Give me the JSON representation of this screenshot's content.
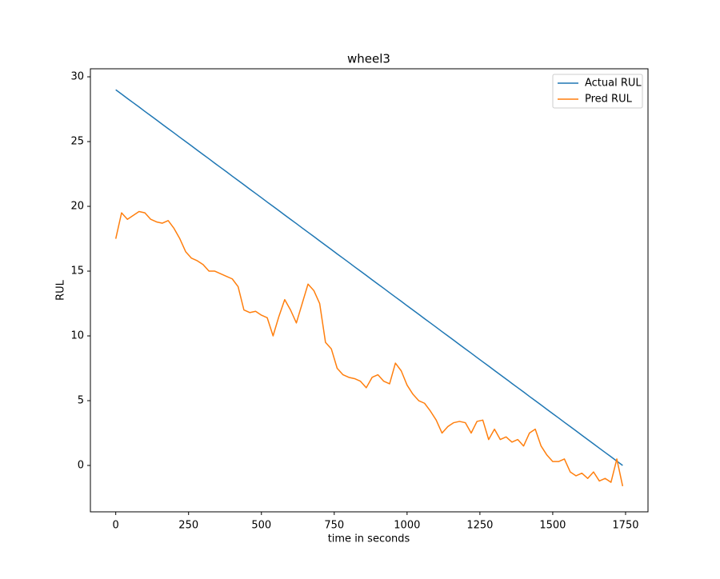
{
  "chart_data": {
    "type": "line",
    "title": "wheel3",
    "xlabel": "time in seconds",
    "ylabel": "RUL",
    "x": [
      0,
      20,
      40,
      60,
      80,
      100,
      120,
      140,
      160,
      180,
      200,
      220,
      240,
      260,
      280,
      300,
      320,
      340,
      360,
      380,
      400,
      420,
      440,
      460,
      480,
      500,
      520,
      540,
      560,
      580,
      600,
      620,
      640,
      660,
      680,
      700,
      720,
      740,
      760,
      780,
      800,
      820,
      840,
      860,
      880,
      900,
      920,
      940,
      960,
      980,
      1000,
      1020,
      1040,
      1060,
      1080,
      1100,
      1120,
      1140,
      1160,
      1180,
      1200,
      1220,
      1240,
      1260,
      1280,
      1300,
      1320,
      1340,
      1360,
      1380,
      1400,
      1420,
      1440,
      1460,
      1480,
      1500,
      1520,
      1540,
      1560,
      1580,
      1600,
      1620,
      1640,
      1660,
      1680,
      1700,
      1720,
      1740
    ],
    "series": [
      {
        "name": "Actual RUL",
        "color": "#1f77b4",
        "values": [
          29,
          28.67,
          28.33,
          28,
          27.67,
          27.33,
          27,
          26.67,
          26.33,
          26,
          25.67,
          25.33,
          25,
          24.67,
          24.33,
          24,
          23.67,
          23.33,
          23,
          22.67,
          22.33,
          22,
          21.67,
          21.33,
          21,
          20.67,
          20.33,
          20,
          19.67,
          19.33,
          19,
          18.67,
          18.33,
          18,
          17.67,
          17.33,
          17,
          16.67,
          16.33,
          16,
          15.67,
          15.33,
          15,
          14.67,
          14.33,
          14,
          13.67,
          13.33,
          13,
          12.67,
          12.33,
          12,
          11.67,
          11.33,
          11,
          10.67,
          10.33,
          10,
          9.67,
          9.33,
          9,
          8.67,
          8.33,
          8,
          7.67,
          7.33,
          7,
          6.67,
          6.33,
          6,
          5.67,
          5.33,
          5,
          4.67,
          4.33,
          4,
          3.67,
          3.33,
          3,
          2.67,
          2.33,
          2,
          1.67,
          1.33,
          1,
          0.67,
          0.33,
          0
        ]
      },
      {
        "name": "Pred RUL",
        "color": "#ff7f0e",
        "values": [
          17.5,
          19.5,
          19,
          19.3,
          19.6,
          19.5,
          19,
          18.8,
          18.7,
          18.9,
          18.3,
          17.5,
          16.5,
          16,
          15.8,
          15.5,
          15,
          15,
          14.8,
          14.6,
          14.4,
          13.8,
          12,
          11.8,
          11.9,
          11.6,
          11.4,
          10,
          11.5,
          12.8,
          12,
          11,
          12.5,
          14,
          13.5,
          12.5,
          9.5,
          9,
          7.5,
          7,
          6.8,
          6.7,
          6.5,
          6,
          6.8,
          7,
          6.5,
          6.3,
          7.9,
          7.3,
          6.2,
          5.5,
          5,
          4.8,
          4.2,
          3.5,
          2.5,
          3,
          3.3,
          3.4,
          3.3,
          2.5,
          3.4,
          3.5,
          2,
          2.8,
          2,
          2.2,
          1.8,
          2,
          1.5,
          2.5,
          2.8,
          1.5,
          0.8,
          0.3,
          0.3,
          0.5,
          -0.5,
          -0.8,
          -0.6,
          -1,
          -0.5,
          -1.2,
          -1,
          -1.3,
          0.5,
          -1.6
        ]
      }
    ],
    "xlim": [
      -87,
      1827
    ],
    "ylim": [
      -3.58,
      30.62
    ],
    "xticks": [
      0,
      250,
      500,
      750,
      1000,
      1250,
      1500,
      1750
    ],
    "yticks": [
      0,
      5,
      10,
      15,
      20,
      25,
      30
    ],
    "legend": "upper right",
    "grid": false
  }
}
